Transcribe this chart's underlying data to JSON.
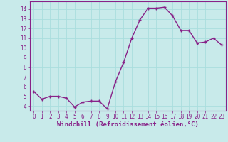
{
  "x": [
    0,
    1,
    2,
    3,
    4,
    5,
    6,
    7,
    8,
    9,
    10,
    11,
    12,
    13,
    14,
    15,
    16,
    17,
    18,
    19,
    20,
    21,
    22,
    23
  ],
  "y": [
    5.5,
    4.7,
    5.0,
    5.0,
    4.8,
    3.9,
    4.4,
    4.5,
    4.5,
    3.7,
    6.5,
    8.5,
    11.0,
    12.9,
    14.1,
    14.1,
    14.2,
    13.3,
    11.8,
    11.8,
    10.5,
    10.6,
    11.0,
    10.3
  ],
  "line_color": "#882288",
  "marker": "+",
  "bg_color": "#c8eaea",
  "grid_color": "#aadddd",
  "xlabel": "Windchill (Refroidissement éolien,°C)",
  "ylim": [
    3.5,
    14.8
  ],
  "xlim": [
    -0.5,
    23.5
  ],
  "yticks": [
    4,
    5,
    6,
    7,
    8,
    9,
    10,
    11,
    12,
    13,
    14
  ],
  "xticks": [
    0,
    1,
    2,
    3,
    4,
    5,
    6,
    7,
    8,
    9,
    10,
    11,
    12,
    13,
    14,
    15,
    16,
    17,
    18,
    19,
    20,
    21,
    22,
    23
  ],
  "xlabel_fontsize": 6.5,
  "tick_fontsize": 5.5,
  "line_width": 1.0,
  "marker_size": 3.5,
  "marker_edge_width": 1.0
}
